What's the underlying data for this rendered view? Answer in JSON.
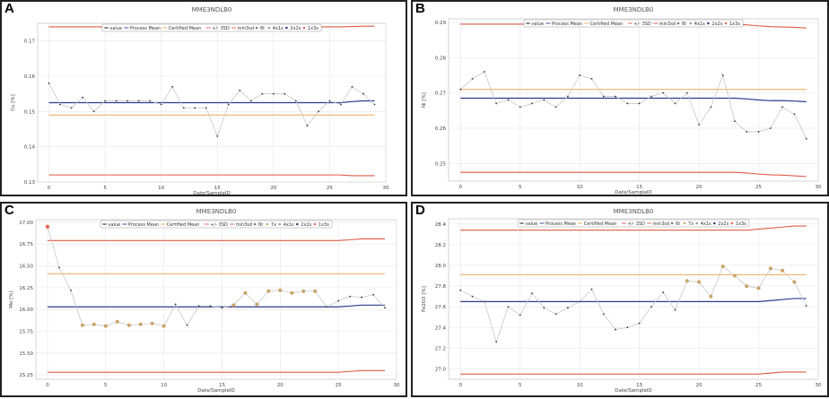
{
  "colors": {
    "value_line": "#c8c8c8",
    "value_point": "#333333",
    "process_mean": "#2b3a8f",
    "certified_mean": "#e8a855",
    "limits": "#e05a45",
    "grid": "#e6e6e6",
    "highlight_7x": "#c9a468",
    "highlight_1x3s": "#e86a5a"
  },
  "chart_data": [
    {
      "panel": "A",
      "type": "line",
      "title": "MME3NDLB0",
      "xlabel": "Date/SampleID",
      "ylabel": "Cu [%]",
      "xlim": [
        -1,
        30
      ],
      "ylim": [
        0.13,
        0.175
      ],
      "xticks": [
        0,
        5,
        10,
        15,
        20,
        25,
        30
      ],
      "yticks": [
        0.13,
        0.14,
        0.15,
        0.16,
        0.17
      ],
      "ytick_labels": [
        "0.13",
        "0.14",
        "0.15",
        "0.16",
        "0.17"
      ],
      "legend": [
        "value",
        "Process Mean",
        "Certified Mean",
        "+/- 3SD",
        "min3sd",
        "6t",
        "4x1s",
        "2x2s",
        "1x3s"
      ],
      "x": [
        0,
        1,
        2,
        3,
        4,
        5,
        6,
        7,
        8,
        9,
        10,
        11,
        12,
        13,
        14,
        15,
        16,
        17,
        18,
        19,
        20,
        21,
        22,
        23,
        24,
        25,
        26,
        27,
        28,
        29
      ],
      "values": [
        0.158,
        0.152,
        0.151,
        0.154,
        0.15,
        0.153,
        0.153,
        0.153,
        0.153,
        0.153,
        0.152,
        0.157,
        0.151,
        0.151,
        0.151,
        0.143,
        0.152,
        0.156,
        0.153,
        0.155,
        0.155,
        0.155,
        0.153,
        0.146,
        0.15,
        0.153,
        0.152,
        0.157,
        0.155,
        0.152
      ],
      "process_mean": [
        0.1525,
        0.1525,
        0.1525,
        0.1525,
        0.1525,
        0.1525,
        0.1525,
        0.1525,
        0.1525,
        0.1525,
        0.1525,
        0.1525,
        0.1525,
        0.1525,
        0.1525,
        0.1525,
        0.1525,
        0.1525,
        0.1525,
        0.1525,
        0.1525,
        0.1525,
        0.1525,
        0.1525,
        0.1525,
        0.1525,
        0.1525,
        0.1528,
        0.153,
        0.153
      ],
      "certified_mean": 0.149,
      "upper_limit": [
        0.174,
        0.174,
        0.174,
        0.174,
        0.174,
        0.174,
        0.174,
        0.174,
        0.174,
        0.174,
        0.174,
        0.174,
        0.174,
        0.174,
        0.174,
        0.174,
        0.174,
        0.174,
        0.174,
        0.174,
        0.174,
        0.174,
        0.174,
        0.174,
        0.174,
        0.174,
        0.174,
        0.1741,
        0.1742,
        0.1742
      ],
      "lower_limit": [
        0.132,
        0.132,
        0.132,
        0.132,
        0.132,
        0.132,
        0.132,
        0.132,
        0.132,
        0.132,
        0.132,
        0.132,
        0.132,
        0.132,
        0.132,
        0.132,
        0.132,
        0.132,
        0.132,
        0.132,
        0.132,
        0.132,
        0.132,
        0.132,
        0.132,
        0.132,
        0.132,
        0.1318,
        0.1318,
        0.1318
      ],
      "highlight_7x": [],
      "highlight_1x3s": []
    },
    {
      "panel": "B",
      "type": "line",
      "title": "MME3NDLB0",
      "xlabel": "Date/SampleID",
      "ylabel": "Ni [%]",
      "xlim": [
        -1,
        30
      ],
      "ylim": [
        0.245,
        0.291
      ],
      "xticks": [
        0,
        5,
        10,
        15,
        20,
        25,
        30
      ],
      "yticks": [
        0.25,
        0.26,
        0.27,
        0.28,
        0.29
      ],
      "ytick_labels": [
        "0.25",
        "0.26",
        "0.27",
        "0.28",
        "0.29"
      ],
      "legend": [
        "value",
        "Process Mean",
        "Certified Mean",
        "+/- 3SD",
        "min3sd",
        "6t",
        "4x1s",
        "2x2s",
        "1x3s"
      ],
      "x": [
        0,
        1,
        2,
        3,
        4,
        5,
        6,
        7,
        8,
        9,
        10,
        11,
        12,
        13,
        14,
        15,
        16,
        17,
        18,
        19,
        20,
        21,
        22,
        23,
        24,
        25,
        26,
        27,
        28,
        29
      ],
      "values": [
        0.271,
        0.274,
        0.276,
        0.267,
        0.268,
        0.266,
        0.267,
        0.268,
        0.266,
        0.269,
        0.275,
        0.274,
        0.269,
        0.269,
        0.267,
        0.267,
        0.269,
        0.27,
        0.267,
        0.27,
        0.261,
        0.266,
        0.275,
        0.262,
        0.259,
        0.259,
        0.26,
        0.266,
        0.264,
        0.257
      ],
      "process_mean": [
        0.2685,
        0.2685,
        0.2685,
        0.2685,
        0.2685,
        0.2685,
        0.2685,
        0.2685,
        0.2685,
        0.2685,
        0.2685,
        0.2685,
        0.2685,
        0.2685,
        0.2685,
        0.2685,
        0.2685,
        0.2685,
        0.2685,
        0.2685,
        0.2685,
        0.2685,
        0.2685,
        0.2685,
        0.2683,
        0.268,
        0.2678,
        0.2678,
        0.2677,
        0.2675
      ],
      "certified_mean": 0.271,
      "upper_limit": [
        0.2895,
        0.2895,
        0.2895,
        0.2895,
        0.2895,
        0.2895,
        0.2895,
        0.2895,
        0.2895,
        0.2895,
        0.2895,
        0.2895,
        0.2895,
        0.2895,
        0.2895,
        0.2895,
        0.2895,
        0.2895,
        0.2895,
        0.2895,
        0.2895,
        0.2895,
        0.2895,
        0.2895,
        0.2893,
        0.289,
        0.2888,
        0.2887,
        0.2886,
        0.2884
      ],
      "lower_limit": [
        0.2475,
        0.2475,
        0.2475,
        0.2475,
        0.2475,
        0.2475,
        0.2475,
        0.2475,
        0.2475,
        0.2475,
        0.2475,
        0.2475,
        0.2475,
        0.2475,
        0.2475,
        0.2475,
        0.2475,
        0.2475,
        0.2475,
        0.2475,
        0.2475,
        0.2475,
        0.2475,
        0.2475,
        0.2473,
        0.247,
        0.2468,
        0.2467,
        0.2465,
        0.2463
      ],
      "highlight_7x": [],
      "highlight_1x3s": []
    },
    {
      "panel": "C",
      "type": "line",
      "title": "MME3NDLB0",
      "xlabel": "Date/SampleID",
      "ylabel": "Mo [%]",
      "xlim": [
        -1,
        30
      ],
      "ylim": [
        15.2,
        17.03
      ],
      "xticks": [
        0,
        5,
        10,
        15,
        20,
        25,
        30
      ],
      "yticks": [
        15.25,
        15.5,
        15.75,
        16.0,
        16.25,
        16.5,
        16.75,
        17.0
      ],
      "ytick_labels": [
        "15.25",
        "15.50",
        "15.75",
        "16.00",
        "16.25",
        "16.50",
        "16.75",
        "17.00"
      ],
      "legend": [
        "value",
        "Process Mean",
        "Certified Mean",
        "+/- 3SD",
        "min3sd",
        "6t",
        "7x",
        "4x1s",
        "2x2s",
        "1x3s"
      ],
      "x": [
        0,
        1,
        2,
        3,
        4,
        5,
        6,
        7,
        8,
        9,
        10,
        11,
        12,
        13,
        14,
        15,
        16,
        17,
        18,
        19,
        20,
        21,
        22,
        23,
        24,
        25,
        26,
        27,
        28,
        29
      ],
      "values": [
        16.95,
        16.48,
        16.22,
        15.82,
        15.83,
        15.81,
        15.86,
        15.82,
        15.83,
        15.84,
        15.81,
        16.06,
        15.82,
        16.04,
        16.04,
        16.02,
        16.05,
        16.19,
        16.06,
        16.21,
        16.22,
        16.19,
        16.21,
        16.21,
        16.03,
        16.1,
        16.15,
        16.14,
        16.17,
        16.02
      ],
      "process_mean": [
        16.03,
        16.03,
        16.03,
        16.03,
        16.03,
        16.03,
        16.03,
        16.03,
        16.03,
        16.03,
        16.03,
        16.03,
        16.03,
        16.03,
        16.03,
        16.03,
        16.03,
        16.03,
        16.03,
        16.03,
        16.03,
        16.03,
        16.03,
        16.03,
        16.03,
        16.03,
        16.04,
        16.05,
        16.05,
        16.05
      ],
      "certified_mean": 16.41,
      "upper_limit": [
        16.79,
        16.79,
        16.79,
        16.79,
        16.79,
        16.79,
        16.79,
        16.79,
        16.79,
        16.79,
        16.79,
        16.79,
        16.79,
        16.79,
        16.79,
        16.79,
        16.79,
        16.79,
        16.79,
        16.79,
        16.79,
        16.79,
        16.79,
        16.79,
        16.79,
        16.79,
        16.8,
        16.81,
        16.81,
        16.81
      ],
      "lower_limit": [
        15.28,
        15.28,
        15.28,
        15.28,
        15.28,
        15.28,
        15.28,
        15.28,
        15.28,
        15.28,
        15.28,
        15.28,
        15.28,
        15.28,
        15.28,
        15.28,
        15.28,
        15.28,
        15.28,
        15.28,
        15.28,
        15.28,
        15.28,
        15.28,
        15.28,
        15.28,
        15.29,
        15.3,
        15.3,
        15.3
      ],
      "highlight_7x": [
        3,
        4,
        5,
        6,
        7,
        8,
        9,
        10,
        16,
        17,
        18,
        19,
        20,
        21,
        22,
        23
      ],
      "highlight_1x3s": [
        0
      ]
    },
    {
      "panel": "D",
      "type": "line",
      "title": "MME3NDLB0",
      "xlabel": "Date/SampleID",
      "ylabel": "Fe2O3 [%]",
      "xlim": [
        -1,
        30
      ],
      "ylim": [
        26.9,
        28.45
      ],
      "xticks": [
        0,
        5,
        10,
        15,
        20,
        25,
        30
      ],
      "yticks": [
        27.0,
        27.2,
        27.4,
        27.6,
        27.8,
        28.0,
        28.2,
        28.4
      ],
      "ytick_labels": [
        "27.0",
        "27.2",
        "27.4",
        "27.6",
        "27.8",
        "28.0",
        "28.2",
        "28.4"
      ],
      "legend": [
        "value",
        "Process Mean",
        "Certified Mean",
        "+/- 3SD",
        "min3sd",
        "6t",
        "7x",
        "4x1s",
        "2x2s",
        "1x3s"
      ],
      "x": [
        0,
        1,
        2,
        3,
        4,
        5,
        6,
        7,
        8,
        9,
        10,
        11,
        12,
        13,
        14,
        15,
        16,
        17,
        18,
        19,
        20,
        21,
        22,
        23,
        24,
        25,
        26,
        27,
        28,
        29
      ],
      "values": [
        27.76,
        27.7,
        27.65,
        27.26,
        27.6,
        27.52,
        27.73,
        27.59,
        27.53,
        27.59,
        27.65,
        27.77,
        27.53,
        27.38,
        27.4,
        27.44,
        27.6,
        27.74,
        27.57,
        27.85,
        27.84,
        27.7,
        27.99,
        27.9,
        27.8,
        27.78,
        27.97,
        27.95,
        27.84,
        27.61
      ],
      "process_mean": [
        27.65,
        27.65,
        27.65,
        27.65,
        27.65,
        27.65,
        27.65,
        27.65,
        27.65,
        27.65,
        27.65,
        27.65,
        27.65,
        27.65,
        27.65,
        27.65,
        27.65,
        27.65,
        27.65,
        27.65,
        27.65,
        27.65,
        27.65,
        27.65,
        27.65,
        27.65,
        27.66,
        27.67,
        27.68,
        27.68
      ],
      "certified_mean": 27.91,
      "upper_limit": [
        28.34,
        28.34,
        28.34,
        28.34,
        28.34,
        28.34,
        28.34,
        28.34,
        28.34,
        28.34,
        28.34,
        28.34,
        28.34,
        28.34,
        28.34,
        28.34,
        28.34,
        28.34,
        28.34,
        28.34,
        28.34,
        28.34,
        28.34,
        28.34,
        28.34,
        28.35,
        28.36,
        28.37,
        28.38,
        28.38
      ],
      "lower_limit": [
        26.95,
        26.95,
        26.95,
        26.95,
        26.95,
        26.95,
        26.95,
        26.95,
        26.95,
        26.95,
        26.95,
        26.95,
        26.95,
        26.95,
        26.95,
        26.95,
        26.95,
        26.95,
        26.95,
        26.95,
        26.95,
        26.95,
        26.95,
        26.95,
        26.95,
        26.95,
        26.96,
        26.97,
        26.97,
        26.97
      ],
      "highlight_7x": [
        19,
        20,
        21,
        22,
        23,
        24,
        25,
        26,
        27,
        28
      ],
      "highlight_1x3s": []
    }
  ]
}
